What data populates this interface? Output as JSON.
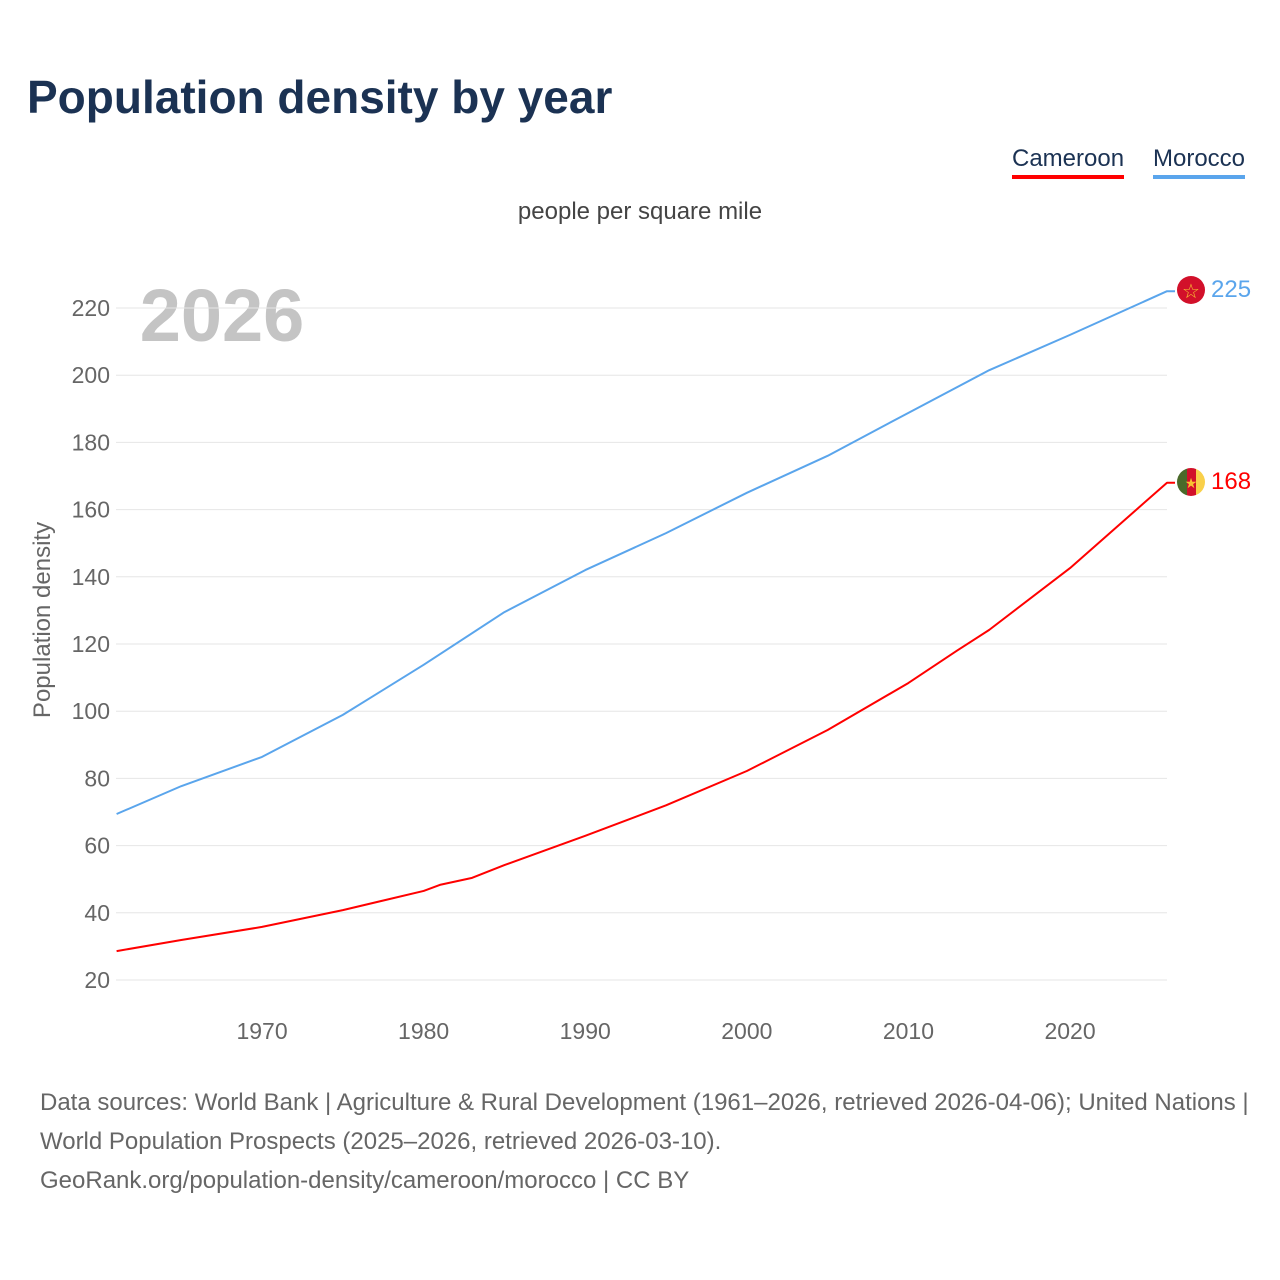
{
  "title": "Population density by year",
  "legend": [
    {
      "label": "Cameroon",
      "color": "#ff0000"
    },
    {
      "label": "Morocco",
      "color": "#5aa5ec"
    }
  ],
  "subtitle": "people per square mile",
  "year_watermark": "2026",
  "footer": {
    "line1": "Data sources: World Bank | Agriculture & Rural Development (1961–2026, retrieved 2026-04-06); United Nations | World Population Prospects (2025–2026, retrieved 2026-03-10).",
    "line2": "GeoRank.org/population-density/cameroon/morocco | CC BY"
  },
  "chart_data": {
    "type": "line",
    "title": "Population density by year",
    "xlabel": "",
    "ylabel": "Population density",
    "xlim": [
      1961,
      2026
    ],
    "ylim": [
      10,
      232
    ],
    "xticks": [
      1970,
      1980,
      1990,
      2000,
      2010,
      2020
    ],
    "yticks": [
      20,
      40,
      60,
      80,
      100,
      120,
      140,
      160,
      180,
      200,
      220
    ],
    "grid": true,
    "legend_position": "top-right",
    "series": [
      {
        "name": "Morocco",
        "color": "#5aa5ec",
        "end_label": "225",
        "x": [
          1961,
          1965,
          1970,
          1975,
          1980,
          1985,
          1990,
          1995,
          2000,
          2005,
          2010,
          2015,
          2020,
          2026
        ],
        "y": [
          69.4,
          77.7,
          86.4,
          98.9,
          113.8,
          129.5,
          142,
          153,
          165,
          176,
          188.8,
          201.5,
          212,
          225
        ]
      },
      {
        "name": "Cameroon",
        "color": "#ff0000",
        "end_label": "168",
        "x": [
          1961,
          1965,
          1970,
          1975,
          1980,
          1981,
          1983,
          1985,
          1990,
          1995,
          2000,
          2005,
          2010,
          2013,
          2015,
          2020,
          2026
        ],
        "y": [
          28.6,
          31.9,
          35.8,
          40.8,
          46.5,
          48.3,
          50.4,
          54.2,
          62.9,
          72,
          82.2,
          94.4,
          108.4,
          118,
          124.2,
          142.6,
          168
        ]
      }
    ]
  }
}
